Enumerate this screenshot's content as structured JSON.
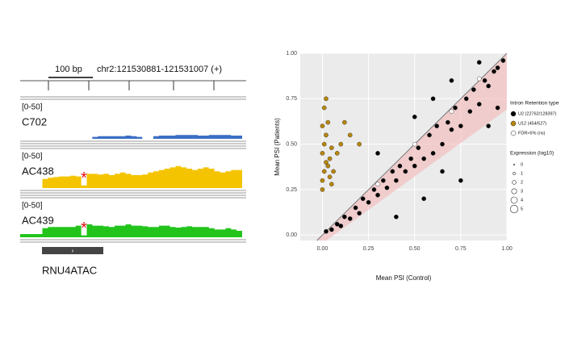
{
  "chart_data": [
    {
      "type": "track",
      "scale_label": "100 bp",
      "locus": "chr2:121530881-121531007 (+)",
      "gene": "RNU4ATAC",
      "tracks": [
        {
          "name": "C702",
          "range_label": "[0-50]",
          "ylim": [
            0,
            50
          ],
          "color": "#3a6fc4",
          "values": [
            0,
            0,
            0,
            0,
            0,
            0,
            0,
            0,
            0,
            0,
            0,
            0,
            0,
            3,
            4,
            4,
            4,
            4,
            4,
            5,
            4,
            3,
            0,
            0,
            4,
            5,
            5,
            5,
            6,
            6,
            6,
            6,
            5,
            5,
            6,
            6,
            6,
            6,
            5,
            5
          ]
        },
        {
          "name": "AC438",
          "range_label": "[0-50]",
          "ylim": [
            0,
            50
          ],
          "color": "#f5c400",
          "marker": "*",
          "values": [
            0,
            0,
            0,
            0,
            14,
            16,
            17,
            18,
            18,
            19,
            18,
            4,
            22,
            22,
            21,
            22,
            20,
            22,
            24,
            22,
            20,
            20,
            21,
            24,
            26,
            28,
            30,
            32,
            34,
            32,
            30,
            28,
            30,
            32,
            30,
            26,
            24,
            26,
            28,
            28
          ]
        },
        {
          "name": "AC439",
          "range_label": "[0-50]",
          "ylim": [
            0,
            50
          ],
          "color": "#22c41c",
          "marker": "*",
          "values": [
            5,
            5,
            5,
            5,
            14,
            16,
            16,
            16,
            16,
            16,
            18,
            3,
            20,
            18,
            18,
            17,
            16,
            18,
            18,
            20,
            18,
            18,
            17,
            16,
            16,
            18,
            18,
            16,
            15,
            16,
            17,
            16,
            16,
            16,
            14,
            12,
            12,
            14,
            12,
            10
          ]
        }
      ]
    },
    {
      "type": "scatter",
      "xlabel": "Mean PSI (Control)",
      "ylabel": "Mean PSI (Patients)",
      "xlim": [
        -0.12,
        1.0
      ],
      "ylim": [
        -0.03,
        1.0
      ],
      "xticks": [
        {
          "value": 0,
          "label": "0.00"
        },
        {
          "value": 0.25,
          "label": "0.25"
        },
        {
          "value": 0.5,
          "label": "0.50"
        },
        {
          "value": 0.75,
          "label": "0.75"
        },
        {
          "value": 1,
          "label": "1.00"
        }
      ],
      "yticks": [
        {
          "value": 0,
          "label": "0.00"
        },
        {
          "value": 0.25,
          "label": "0.25"
        },
        {
          "value": 0.5,
          "label": "0.50"
        },
        {
          "value": 0.75,
          "label": "0.75"
        },
        {
          "value": 1,
          "label": "1.00"
        }
      ],
      "grid": true,
      "legend_title": "Intron Retention type",
      "series": [
        {
          "name": "U2 (22762/128397)",
          "color": "#000000",
          "x": [
            0.02,
            0.05,
            0.08,
            0.1,
            0.12,
            0.15,
            0.18,
            0.2,
            0.22,
            0.25,
            0.28,
            0.3,
            0.33,
            0.35,
            0.38,
            0.4,
            0.42,
            0.45,
            0.48,
            0.5,
            0.52,
            0.55,
            0.58,
            0.6,
            0.62,
            0.65,
            0.68,
            0.7,
            0.72,
            0.75,
            0.78,
            0.8,
            0.82,
            0.85,
            0.88,
            0.9,
            0.93,
            0.95,
            0.98,
            0.6,
            0.7,
            0.5,
            0.85,
            0.3,
            0.9,
            0.4,
            0.55,
            0.75,
            0.95,
            0.65
          ],
          "y": [
            0.02,
            0.03,
            0.06,
            0.05,
            0.1,
            0.09,
            0.15,
            0.12,
            0.2,
            0.18,
            0.25,
            0.22,
            0.3,
            0.26,
            0.35,
            0.3,
            0.38,
            0.35,
            0.42,
            0.38,
            0.48,
            0.42,
            0.55,
            0.45,
            0.6,
            0.5,
            0.62,
            0.58,
            0.7,
            0.6,
            0.75,
            0.68,
            0.8,
            0.72,
            0.85,
            0.82,
            0.9,
            0.92,
            0.96,
            0.75,
            0.85,
            0.65,
            0.95,
            0.45,
            0.6,
            0.1,
            0.2,
            0.3,
            0.7,
            0.35
          ]
        },
        {
          "name": "U12 (454/527)",
          "color": "#b8860b",
          "x": [
            0.0,
            0.01,
            0.02,
            0.0,
            0.03,
            0.01,
            0.04,
            0.02,
            0.05,
            0.0,
            0.06,
            0.03,
            0.01,
            0.08,
            0.02,
            0.04,
            0.1,
            0.15,
            0.2,
            0.12,
            0.0,
            0.05
          ],
          "y": [
            0.3,
            0.35,
            0.4,
            0.45,
            0.38,
            0.5,
            0.42,
            0.55,
            0.48,
            0.6,
            0.35,
            0.62,
            0.7,
            0.45,
            0.75,
            0.32,
            0.5,
            0.55,
            0.5,
            0.62,
            0.25,
            0.28
          ]
        },
        {
          "name": "FDR>5% (ns)",
          "color": "#ffffff",
          "x": [
            0.3,
            0.5,
            0.7,
            0.85
          ],
          "y": [
            0.28,
            0.5,
            0.68,
            0.86
          ]
        }
      ],
      "size_legend": {
        "title": "Expression (log10)",
        "labels": [
          0,
          1,
          2,
          3,
          4,
          5
        ]
      }
    }
  ]
}
